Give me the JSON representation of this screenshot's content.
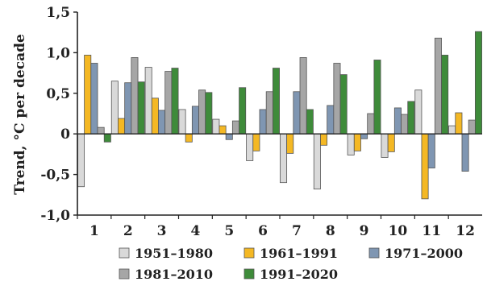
{
  "chart_data": {
    "type": "bar",
    "title": "",
    "xlabel": "",
    "ylabel": "Trend, °C per decade",
    "ylim": [
      -1.0,
      1.5
    ],
    "yticks": [
      -1.0,
      -0.5,
      0,
      0.5,
      1.0,
      1.5
    ],
    "ytick_labels": [
      "-1,0",
      "-0,5",
      "0",
      "0,5",
      "1,0",
      "1,5"
    ],
    "categories": [
      "1",
      "2",
      "3",
      "4",
      "5",
      "6",
      "7",
      "8",
      "9",
      "10",
      "11",
      "12"
    ],
    "series": [
      {
        "name": "1951–1980",
        "color": "#d9d9d9",
        "values": [
          -0.65,
          0.65,
          0.82,
          0.3,
          0.18,
          -0.33,
          -0.6,
          -0.68,
          -0.26,
          -0.29,
          0.54,
          0.1
        ]
      },
      {
        "name": "1961–1991",
        "color": "#f4b824",
        "values": [
          0.97,
          0.19,
          0.44,
          -0.1,
          0.1,
          -0.21,
          -0.24,
          -0.14,
          -0.21,
          -0.22,
          -0.8,
          0.26
        ]
      },
      {
        "name": "1971–2000",
        "color": "#7f96b2",
        "values": [
          0.87,
          0.63,
          0.29,
          0.34,
          -0.07,
          0.3,
          0.52,
          0.35,
          -0.06,
          0.32,
          -0.42,
          -0.46
        ]
      },
      {
        "name": "1981–2010",
        "color": "#a6a6a6",
        "values": [
          0.08,
          0.94,
          0.77,
          0.54,
          0.16,
          0.52,
          0.94,
          0.87,
          0.25,
          0.24,
          1.18,
          0.17
        ]
      },
      {
        "name": "1991–2020",
        "color": "#3e8b3a",
        "values": [
          -0.1,
          0.64,
          0.81,
          0.51,
          0.57,
          0.81,
          0.3,
          0.73,
          0.91,
          0.4,
          0.97,
          1.26
        ]
      }
    ],
    "grid": false,
    "legend_placement": "bottom"
  }
}
